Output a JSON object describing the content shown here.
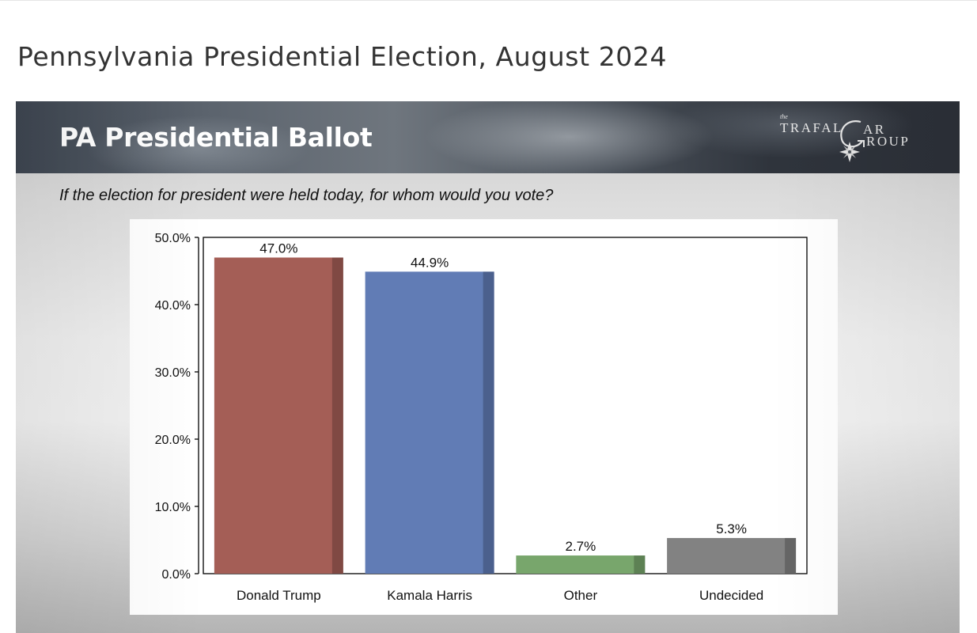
{
  "page": {
    "title": "Pennsylvania Presidential Election, August 2024"
  },
  "slide": {
    "banner_title": "PA Presidential Ballot",
    "logo": {
      "the": "the",
      "trafal": "TRAFAL",
      "ar": "AR",
      "roup": "ROUP"
    },
    "question": "If the election for president were held today, for whom would you vote?"
  },
  "colors": {
    "trump": "#a45e56",
    "harris": "#617cb5",
    "other": "#78a66c",
    "undecided": "#828282"
  },
  "chart_data": {
    "type": "bar",
    "title": "",
    "xlabel": "",
    "ylabel": "",
    "categories": [
      "Donald Trump",
      "Kamala Harris",
      "Other",
      "Undecided"
    ],
    "values": [
      47.0,
      44.9,
      2.7,
      5.3
    ],
    "value_labels": [
      "47.0%",
      "44.9%",
      "2.7%",
      "5.3%"
    ],
    "ylim": [
      0,
      50
    ],
    "yticks": [
      0,
      10,
      20,
      30,
      40,
      50
    ],
    "ytick_labels": [
      "0.0%",
      "10.0%",
      "20.0%",
      "30.0%",
      "40.0%",
      "50.0%"
    ],
    "grid": false,
    "legend": "none"
  }
}
